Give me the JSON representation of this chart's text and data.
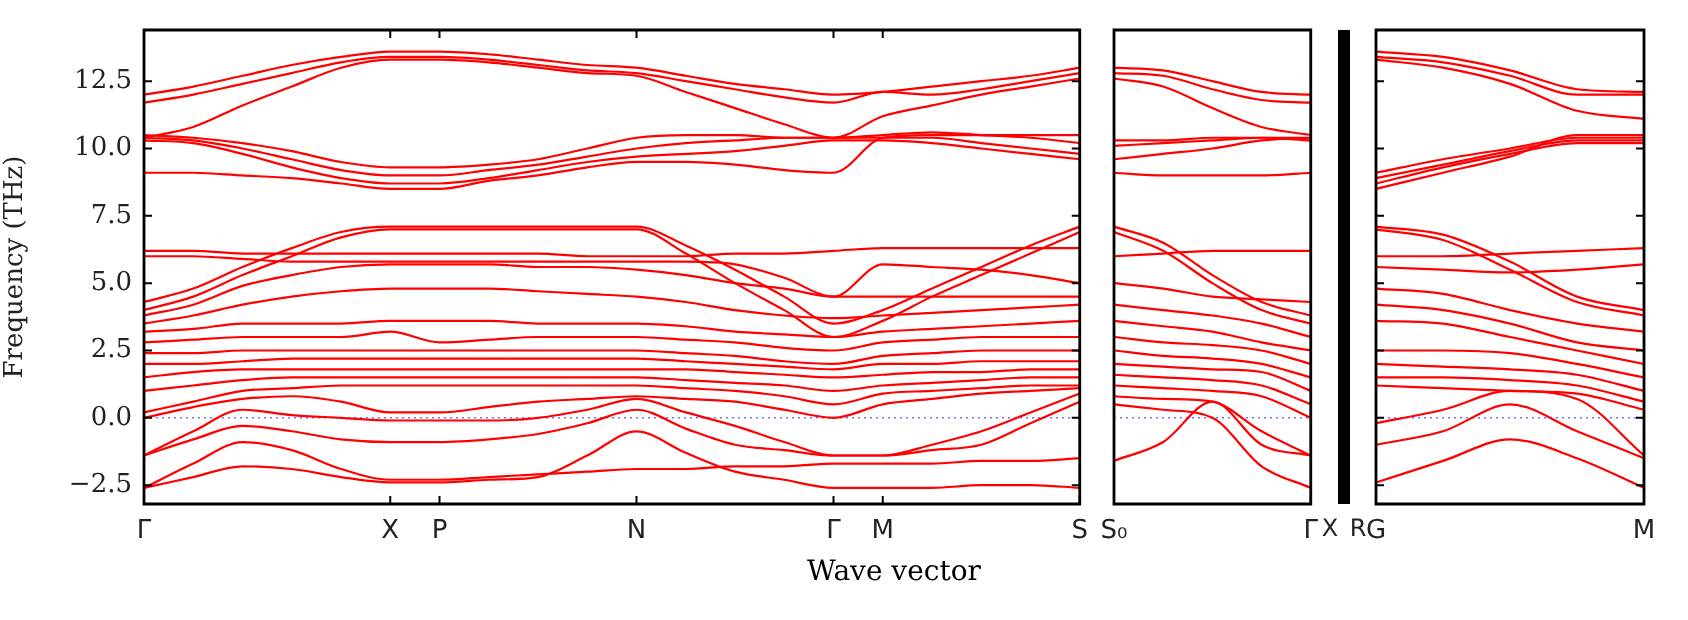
{
  "chart_data": [
    {
      "type": "line",
      "ylabel": "Frequency (THz)",
      "xlabel": "Wave vector",
      "categories": [
        "Γ",
        null,
        null,
        null,
        null,
        "X",
        "P",
        null,
        null,
        null,
        "N",
        null,
        null,
        null,
        "Γ",
        "M",
        null,
        null,
        null,
        "S"
      ],
      "ylim": [
        -3.2,
        14.4
      ],
      "yticks": [
        {
          "value": -2.5,
          "label": "−2.5"
        },
        {
          "value": 0,
          "label": "0.0"
        },
        2.5,
        {
          "value": 5,
          "label": "5.0"
        },
        7.5,
        {
          "value": 10,
          "label": "10.0"
        },
        12.5
      ],
      "ref_lines": [
        {
          "axis": "y",
          "value": 0,
          "color": "#7070ff",
          "line_style": "dotted"
        }
      ],
      "series": [
        {
          "color": "#ff0000",
          "values": [
            12.0,
            12.3,
            12.7,
            13.1,
            13.4,
            13.6,
            13.6,
            13.5,
            13.3,
            13.1,
            13.0,
            12.7,
            12.4,
            12.2,
            12.0,
            12.1,
            12.3,
            12.5,
            12.7,
            13.0
          ]
        },
        {
          "color": "#ff0000",
          "values": [
            11.7,
            12.0,
            12.4,
            12.8,
            13.2,
            13.4,
            13.4,
            13.3,
            13.1,
            12.9,
            12.8,
            12.5,
            12.2,
            11.9,
            11.7,
            12.1,
            12.0,
            12.2,
            12.5,
            12.8
          ]
        },
        {
          "color": "#ff0000",
          "values": [
            10.4,
            10.8,
            11.6,
            12.3,
            13.0,
            13.3,
            13.3,
            13.2,
            13.0,
            12.8,
            12.7,
            12.1,
            11.5,
            10.9,
            10.4,
            11.2,
            11.6,
            12.0,
            12.3,
            12.6
          ]
        },
        {
          "color": "#ff0000",
          "values": [
            10.5,
            10.4,
            10.2,
            9.9,
            9.5,
            9.3,
            9.3,
            9.4,
            9.6,
            10.0,
            10.4,
            10.5,
            10.5,
            10.4,
            10.4,
            10.5,
            10.6,
            10.5,
            10.4,
            10.2
          ]
        },
        {
          "color": "#ff0000",
          "values": [
            10.4,
            10.3,
            10.0,
            9.6,
            9.2,
            9.0,
            9.0,
            9.2,
            9.4,
            9.7,
            10.0,
            10.2,
            10.3,
            10.4,
            10.4,
            10.4,
            10.4,
            10.2,
            10.0,
            9.8
          ]
        },
        {
          "color": "#ff0000",
          "values": [
            10.3,
            10.2,
            9.8,
            9.3,
            8.9,
            8.7,
            8.7,
            8.9,
            9.2,
            9.5,
            9.7,
            9.8,
            9.9,
            10.1,
            10.3,
            10.3,
            10.2,
            10.0,
            9.8,
            9.6
          ]
        },
        {
          "color": "#ff0000",
          "values": [
            9.1,
            9.1,
            9.0,
            8.9,
            8.7,
            8.5,
            8.5,
            8.8,
            9.0,
            9.3,
            9.5,
            9.5,
            9.4,
            9.2,
            9.1,
            10.4,
            10.5,
            10.5,
            10.5,
            10.5
          ]
        },
        {
          "color": "#ff0000",
          "values": [
            6.2,
            6.2,
            6.1,
            6.1,
            6.1,
            6.1,
            6.1,
            6.1,
            6.1,
            6.0,
            6.0,
            6.0,
            6.1,
            6.1,
            6.2,
            6.3,
            6.3,
            6.3,
            6.3,
            6.3
          ]
        },
        {
          "color": "#ff0000",
          "values": [
            6.0,
            6.0,
            5.9,
            5.8,
            5.8,
            5.8,
            5.8,
            5.8,
            5.8,
            5.8,
            5.8,
            5.8,
            5.7,
            5.2,
            4.5,
            5.7,
            5.6,
            5.5,
            5.3,
            5.0
          ]
        },
        {
          "color": "#ff0000",
          "values": [
            4.3,
            4.8,
            5.6,
            6.3,
            6.9,
            7.1,
            7.1,
            7.1,
            7.1,
            7.1,
            7.1,
            6.4,
            5.5,
            4.5,
            3.5,
            4.0,
            4.8,
            5.6,
            6.4,
            7.1
          ]
        },
        {
          "color": "#ff0000",
          "values": [
            4.0,
            4.5,
            5.3,
            6.0,
            6.7,
            7.0,
            7.0,
            7.0,
            7.0,
            7.0,
            7.0,
            6.1,
            5.0,
            4.0,
            3.0,
            3.6,
            4.5,
            5.3,
            6.1,
            6.9
          ]
        },
        {
          "color": "#ff0000",
          "values": [
            3.8,
            4.2,
            4.9,
            5.3,
            5.6,
            5.7,
            5.7,
            5.7,
            5.6,
            5.6,
            5.5,
            5.3,
            5.0,
            4.8,
            4.5,
            4.5,
            4.5,
            4.5,
            4.5,
            4.5
          ]
        },
        {
          "color": "#ff0000",
          "values": [
            3.5,
            3.8,
            4.2,
            4.5,
            4.7,
            4.8,
            4.8,
            4.8,
            4.7,
            4.6,
            4.5,
            4.3,
            4.0,
            3.8,
            3.7,
            3.8,
            3.9,
            4.0,
            4.1,
            4.2
          ]
        },
        {
          "color": "#ff0000",
          "values": [
            3.2,
            3.3,
            3.5,
            3.5,
            3.5,
            3.6,
            3.6,
            3.6,
            3.5,
            3.5,
            3.5,
            3.4,
            3.2,
            3.1,
            3.0,
            3.2,
            3.3,
            3.4,
            3.5,
            3.6
          ]
        },
        {
          "color": "#ff0000",
          "values": [
            2.8,
            2.9,
            3.0,
            3.0,
            3.0,
            3.2,
            2.8,
            2.9,
            3.0,
            3.0,
            3.0,
            2.9,
            2.8,
            2.6,
            2.5,
            2.8,
            2.9,
            3.0,
            3.0,
            3.0
          ]
        },
        {
          "color": "#ff0000",
          "values": [
            2.4,
            2.4,
            2.5,
            2.5,
            2.5,
            2.5,
            2.5,
            2.5,
            2.5,
            2.5,
            2.5,
            2.4,
            2.3,
            2.1,
            2.0,
            2.3,
            2.4,
            2.5,
            2.5,
            2.5
          ]
        },
        {
          "color": "#ff0000",
          "values": [
            2.0,
            2.0,
            2.1,
            2.2,
            2.2,
            2.2,
            2.2,
            2.2,
            2.2,
            2.2,
            2.2,
            2.1,
            2.0,
            1.9,
            1.8,
            2.0,
            2.0,
            2.1,
            2.1,
            2.1
          ]
        },
        {
          "color": "#ff0000",
          "values": [
            1.5,
            1.7,
            1.8,
            1.8,
            1.8,
            1.8,
            1.8,
            1.8,
            1.8,
            1.8,
            1.8,
            1.8,
            1.7,
            1.6,
            1.5,
            1.6,
            1.7,
            1.7,
            1.8,
            1.8
          ]
        },
        {
          "color": "#ff0000",
          "values": [
            1.0,
            1.2,
            1.4,
            1.5,
            1.5,
            1.5,
            1.5,
            1.5,
            1.5,
            1.5,
            1.5,
            1.4,
            1.3,
            1.2,
            1.0,
            1.2,
            1.3,
            1.4,
            1.5,
            1.5
          ]
        },
        {
          "color": "#ff0000",
          "values": [
            0.2,
            0.6,
            1.0,
            1.1,
            1.2,
            1.2,
            1.2,
            1.2,
            1.2,
            1.2,
            1.2,
            1.1,
            1.0,
            0.8,
            0.5,
            0.9,
            1.0,
            1.1,
            1.2,
            1.2
          ]
        },
        {
          "color": "#ff0000",
          "values": [
            0.0,
            0.4,
            0.7,
            0.8,
            0.6,
            0.2,
            0.2,
            0.4,
            0.6,
            0.7,
            0.8,
            0.7,
            0.6,
            0.3,
            0.0,
            0.5,
            0.7,
            0.9,
            1.0,
            1.1
          ]
        },
        {
          "color": "#ff0000",
          "values": [
            -1.4,
            -0.5,
            0.3,
            0.1,
            0.0,
            -0.1,
            -0.1,
            -0.1,
            0.0,
            0.3,
            0.7,
            0.2,
            -0.3,
            -0.9,
            -1.4,
            -1.4,
            -1.0,
            -0.5,
            0.2,
            0.9
          ]
        },
        {
          "color": "#ff0000",
          "values": [
            -1.4,
            -0.8,
            -0.3,
            -0.5,
            -0.8,
            -0.9,
            -0.9,
            -0.8,
            -0.6,
            -0.2,
            0.3,
            -0.4,
            -1.0,
            -1.2,
            -1.4,
            -1.4,
            -1.2,
            -1.0,
            -0.2,
            0.6
          ]
        },
        {
          "color": "#ff0000",
          "values": [
            -2.6,
            -1.7,
            -0.9,
            -1.2,
            -1.9,
            -2.3,
            -2.3,
            -2.2,
            -2.1,
            -2.0,
            -1.9,
            -1.9,
            -1.8,
            -1.8,
            -1.7,
            -1.7,
            -1.7,
            -1.6,
            -1.6,
            -1.5
          ]
        },
        {
          "color": "#ff0000",
          "values": [
            -2.6,
            -2.2,
            -1.8,
            -1.9,
            -2.2,
            -2.4,
            -2.4,
            -2.3,
            -2.2,
            -1.4,
            -0.5,
            -1.3,
            -2.0,
            -2.3,
            -2.6,
            -2.6,
            -2.6,
            -2.5,
            -2.5,
            -2.6
          ]
        }
      ]
    },
    {
      "type": "line",
      "tick_labels": "x",
      "categories": [
        "S₀",
        null,
        null,
        null,
        "Γ"
      ],
      "ylim": [
        -3.2,
        14.4
      ],
      "ref_lines": [
        {
          "axis": "y",
          "value": 0,
          "color": "#7070ff",
          "line_style": "dotted"
        }
      ],
      "series": [
        {
          "color": "#ff0000",
          "values": [
            13.0,
            12.9,
            12.5,
            12.1,
            12.0
          ]
        },
        {
          "color": "#ff0000",
          "values": [
            12.8,
            12.7,
            12.2,
            11.8,
            11.7
          ]
        },
        {
          "color": "#ff0000",
          "values": [
            12.6,
            12.3,
            11.5,
            10.8,
            10.5
          ]
        },
        {
          "color": "#ff0000",
          "values": [
            10.3,
            10.3,
            10.4,
            10.4,
            10.4
          ]
        },
        {
          "color": "#ff0000",
          "values": [
            10.1,
            10.2,
            10.3,
            10.4,
            10.3
          ]
        },
        {
          "color": "#ff0000",
          "values": [
            9.6,
            9.8,
            10.0,
            10.3,
            10.4
          ]
        },
        {
          "color": "#ff0000",
          "values": [
            9.1,
            9.0,
            9.0,
            9.0,
            9.1
          ]
        },
        {
          "color": "#ff0000",
          "values": [
            7.1,
            6.5,
            5.3,
            4.3,
            3.8
          ]
        },
        {
          "color": "#ff0000",
          "values": [
            6.9,
            6.2,
            5.0,
            4.0,
            3.5
          ]
        },
        {
          "color": "#ff0000",
          "values": [
            6.0,
            6.1,
            6.2,
            6.2,
            6.2
          ]
        },
        {
          "color": "#ff0000",
          "values": [
            5.0,
            4.8,
            4.5,
            4.4,
            4.3
          ]
        },
        {
          "color": "#ff0000",
          "values": [
            4.2,
            4.0,
            3.8,
            3.5,
            3.0
          ]
        },
        {
          "color": "#ff0000",
          "values": [
            3.6,
            3.4,
            3.2,
            2.8,
            2.5
          ]
        },
        {
          "color": "#ff0000",
          "values": [
            3.0,
            2.8,
            2.7,
            2.5,
            2.0
          ]
        },
        {
          "color": "#ff0000",
          "values": [
            2.5,
            2.3,
            2.2,
            2.0,
            1.5
          ]
        },
        {
          "color": "#ff0000",
          "values": [
            2.0,
            1.9,
            1.8,
            1.7,
            1.0
          ]
        },
        {
          "color": "#ff0000",
          "values": [
            1.6,
            1.5,
            1.4,
            1.2,
            0.5
          ]
        },
        {
          "color": "#ff0000",
          "values": [
            1.2,
            1.1,
            1.0,
            0.8,
            0.0
          ]
        },
        {
          "color": "#ff0000",
          "values": [
            0.8,
            0.7,
            0.6,
            -0.5,
            -1.4
          ]
        },
        {
          "color": "#ff0000",
          "values": [
            -1.6,
            -0.9,
            0.6,
            -1.0,
            -1.4
          ]
        },
        {
          "color": "#ff0000",
          "values": [
            0.5,
            0.3,
            0.0,
            -1.8,
            -2.6
          ]
        }
      ]
    },
    {
      "type": "other",
      "categories": [
        "X",
        "R"
      ]
    },
    {
      "type": "line",
      "tick_labels": "x",
      "categories": [
        "G",
        null,
        null,
        null,
        "M"
      ],
      "ylim": [
        -3.2,
        14.4
      ],
      "yticks": [
        {
          "value": -2.5,
          "label": null
        },
        {
          "value": 0,
          "label": null
        },
        {
          "value": 2.5,
          "label": null
        },
        {
          "value": 5,
          "label": null
        },
        {
          "value": 7.5,
          "label": null
        },
        {
          "value": 10,
          "label": null
        },
        {
          "value": 12.5,
          "label": null
        }
      ],
      "ref_lines": [
        {
          "axis": "y",
          "value": 0,
          "color": "#7070ff",
          "line_style": "dotted"
        }
      ],
      "series": [
        {
          "color": "#ff0000",
          "values": [
            13.6,
            13.4,
            12.9,
            12.2,
            12.1
          ]
        },
        {
          "color": "#ff0000",
          "values": [
            13.4,
            13.2,
            12.7,
            12.0,
            12.0
          ]
        },
        {
          "color": "#ff0000",
          "values": [
            13.3,
            13.0,
            12.4,
            11.4,
            11.1
          ]
        },
        {
          "color": "#ff0000",
          "values": [
            9.1,
            9.6,
            10.0,
            10.4,
            10.4
          ]
        },
        {
          "color": "#ff0000",
          "values": [
            8.9,
            9.4,
            9.9,
            10.3,
            10.3
          ]
        },
        {
          "color": "#ff0000",
          "values": [
            8.7,
            9.3,
            9.8,
            10.2,
            10.2
          ]
        },
        {
          "color": "#ff0000",
          "values": [
            8.5,
            9.1,
            9.7,
            10.5,
            10.5
          ]
        },
        {
          "color": "#ff0000",
          "values": [
            7.1,
            6.8,
            5.8,
            4.5,
            4.0
          ]
        },
        {
          "color": "#ff0000",
          "values": [
            7.0,
            6.6,
            5.5,
            4.3,
            3.8
          ]
        },
        {
          "color": "#ff0000",
          "values": [
            6.0,
            6.0,
            6.1,
            6.2,
            6.3
          ]
        },
        {
          "color": "#ff0000",
          "values": [
            5.6,
            5.5,
            5.4,
            5.5,
            5.7
          ]
        },
        {
          "color": "#ff0000",
          "values": [
            4.8,
            4.6,
            4.0,
            3.5,
            3.2
          ]
        },
        {
          "color": "#ff0000",
          "values": [
            4.2,
            4.0,
            3.5,
            2.8,
            2.5
          ]
        },
        {
          "color": "#ff0000",
          "values": [
            3.6,
            3.5,
            3.0,
            2.5,
            2.0
          ]
        },
        {
          "color": "#ff0000",
          "values": [
            2.5,
            2.5,
            2.4,
            2.0,
            1.5
          ]
        },
        {
          "color": "#ff0000",
          "values": [
            2.0,
            1.9,
            1.8,
            1.6,
            1.0
          ]
        },
        {
          "color": "#ff0000",
          "values": [
            1.5,
            1.5,
            1.4,
            1.2,
            0.6
          ]
        },
        {
          "color": "#ff0000",
          "values": [
            1.2,
            1.1,
            1.0,
            0.9,
            0.3
          ]
        },
        {
          "color": "#ff0000",
          "values": [
            -0.2,
            0.3,
            1.0,
            0.7,
            -1.4
          ]
        },
        {
          "color": "#ff0000",
          "values": [
            -1.0,
            -0.5,
            0.5,
            -0.5,
            -1.5
          ]
        },
        {
          "color": "#ff0000",
          "values": [
            -2.4,
            -1.6,
            -0.8,
            -1.5,
            -2.6
          ]
        }
      ]
    }
  ]
}
